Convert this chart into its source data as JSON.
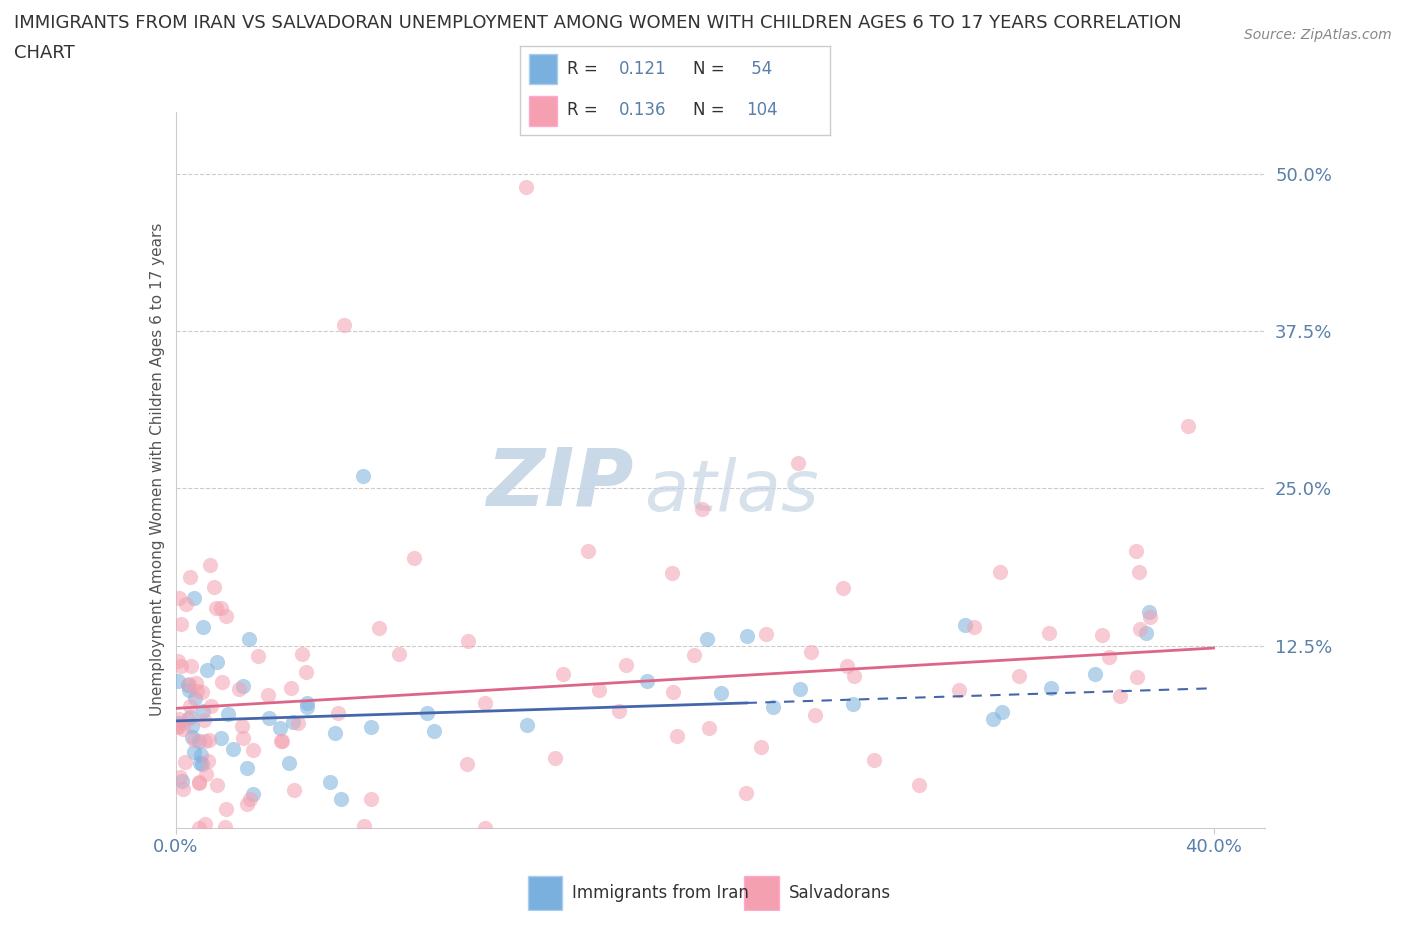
{
  "title_line1": "IMMIGRANTS FROM IRAN VS SALVADORAN UNEMPLOYMENT AMONG WOMEN WITH CHILDREN AGES 6 TO 17 YEARS CORRELATION",
  "title_line2": "CHART",
  "source_text": "Source: ZipAtlas.com",
  "ylabel": "Unemployment Among Women with Children Ages 6 to 17 years",
  "xlim": [
    0.0,
    0.42
  ],
  "ylim": [
    -0.02,
    0.55
  ],
  "x_ticks": [
    0.0,
    0.4
  ],
  "x_tick_labels": [
    "0.0%",
    "40.0%"
  ],
  "y_ticks": [
    0.0,
    0.125,
    0.25,
    0.375,
    0.5
  ],
  "y_tick_labels": [
    "",
    "12.5%",
    "25.0%",
    "37.5%",
    "50.0%"
  ],
  "grid_color": "#cccccc",
  "background_color": "#ffffff",
  "watermark_zip": "ZIP",
  "watermark_atlas": "atlas",
  "watermark_color_zip": "#c8d8e8",
  "watermark_color_atlas": "#c8d8e8",
  "iran_color": "#7ab0de",
  "salvador_color": "#f4a0b0",
  "iran_line_color": "#4466aa",
  "salvador_line_color": "#dd6688",
  "iran_R": 0.121,
  "iran_N": 54,
  "salvador_R": 0.136,
  "salvador_N": 104,
  "iran_intercept": 0.065,
  "iran_slope": 0.065,
  "salvador_intercept": 0.075,
  "salvador_slope": 0.12,
  "tick_color": "#5a7fa8",
  "tick_fontsize": 13,
  "ylabel_fontsize": 11,
  "ylabel_color": "#555555",
  "title_fontsize": 13,
  "title_color": "#333333",
  "source_fontsize": 10,
  "source_color": "#888888"
}
